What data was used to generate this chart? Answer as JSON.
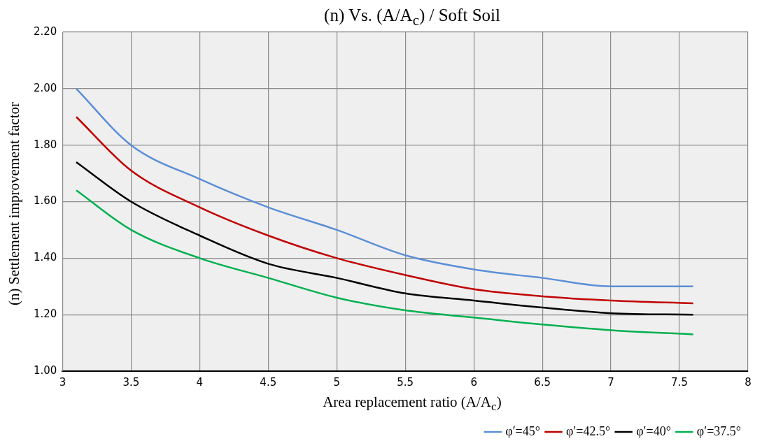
{
  "chart_data": {
    "type": "line",
    "title": "(n) Vs. (A/A$_{c}$) / Soft Soil",
    "xlabel": "Area replacement ratio (A/A$_{c}$)",
    "ylabel": "(n) Settlement improvement factor",
    "x": [
      3.1,
      3.5,
      4,
      4.5,
      5,
      5.5,
      6,
      6.5,
      7,
      7.6
    ],
    "series": [
      {
        "name": "φ′=45°",
        "color": "#5b8fd6",
        "values": [
          2.0,
          1.8,
          1.68,
          1.58,
          1.5,
          1.41,
          1.36,
          1.33,
          1.3,
          1.3
        ]
      },
      {
        "name": "φ′=42.5°",
        "color": "#c00000",
        "values": [
          1.9,
          1.71,
          1.58,
          1.48,
          1.4,
          1.34,
          1.29,
          1.265,
          1.25,
          1.24
        ]
      },
      {
        "name": "φ′=40°",
        "color": "#000000",
        "values": [
          1.74,
          1.6,
          1.48,
          1.38,
          1.33,
          1.275,
          1.25,
          1.225,
          1.205,
          1.2
        ]
      },
      {
        "name": "φ′=37.5°",
        "color": "#00b050",
        "values": [
          1.64,
          1.5,
          1.4,
          1.33,
          1.26,
          1.215,
          1.19,
          1.165,
          1.145,
          1.13
        ]
      }
    ],
    "xlim": [
      3,
      8
    ],
    "xticks": [
      3,
      3.5,
      4,
      4.5,
      5,
      5.5,
      6,
      6.5,
      7,
      7.5,
      8
    ],
    "ylim": [
      1.0,
      2.2
    ],
    "yticks": [
      {
        "value": 1.0,
        "label": "1.00"
      },
      {
        "value": 1.2,
        "label": "1.20"
      },
      {
        "value": 1.4,
        "label": "1.40"
      },
      {
        "value": 1.6,
        "label": "1.60"
      },
      {
        "value": 1.8,
        "label": "1.80"
      },
      {
        "value": 2.0,
        "label": "2.00"
      },
      {
        "value": 2.2,
        "label": "2.20"
      }
    ],
    "grid": true,
    "legend": "bottom right",
    "marker": "none",
    "line_style": "solid"
  }
}
